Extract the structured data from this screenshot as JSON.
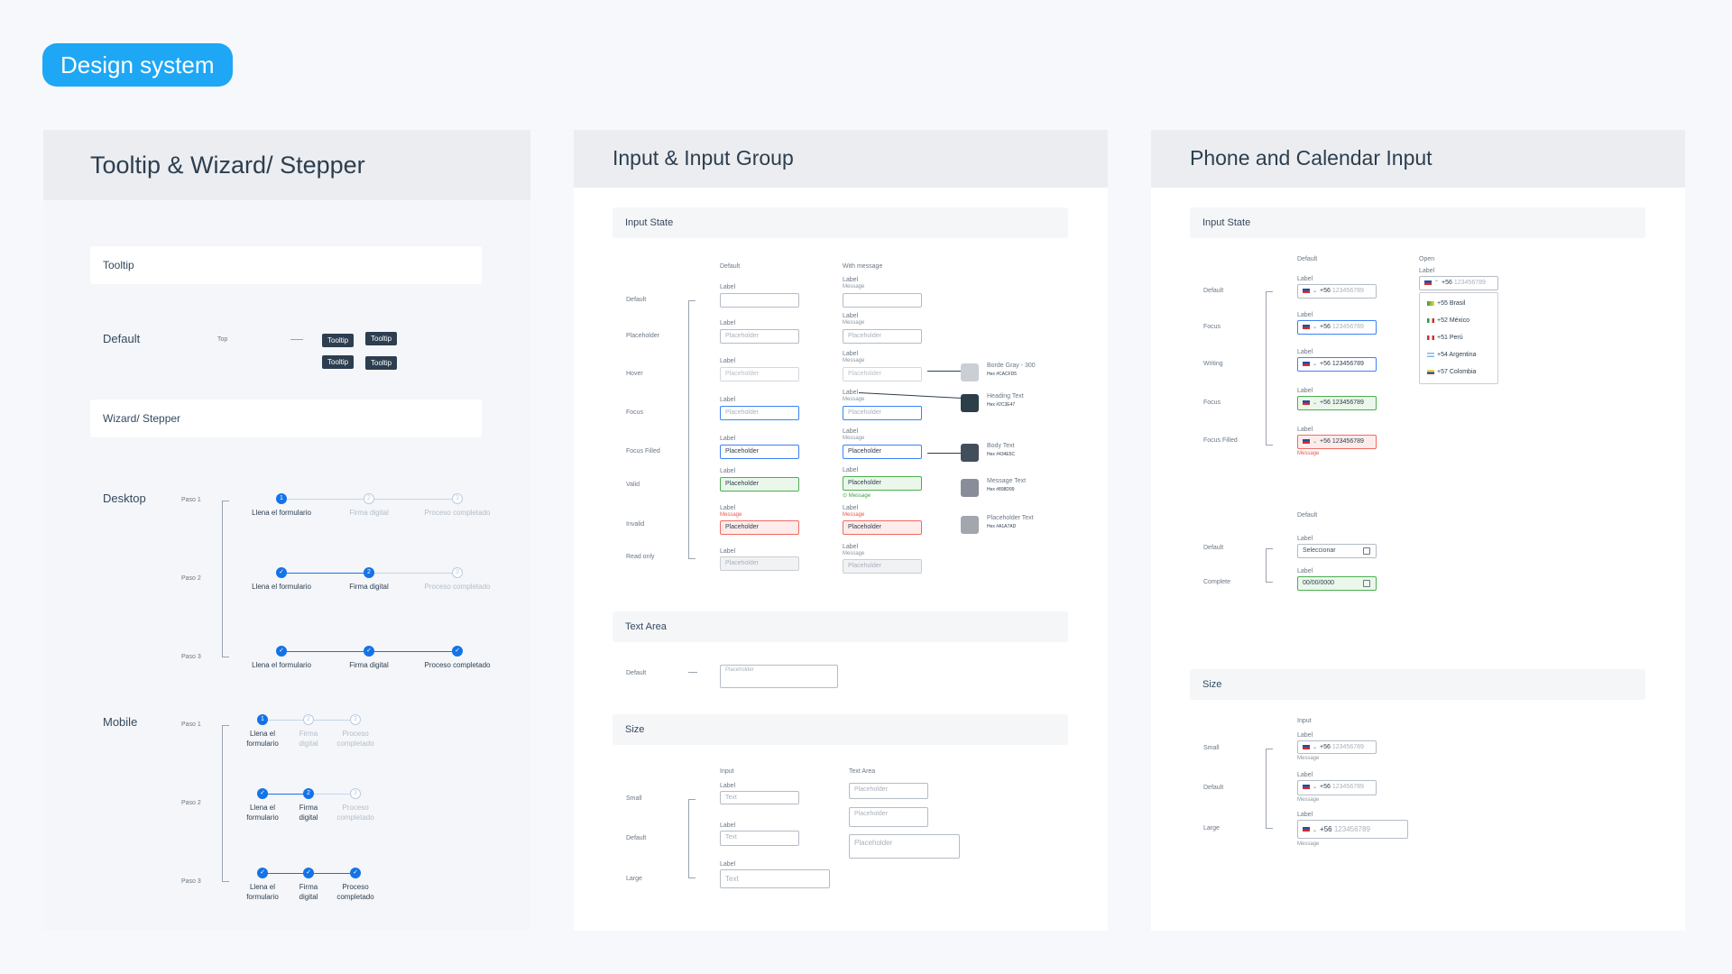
{
  "badge": "Design system",
  "p1": {
    "title": "Tooltip & Wizard/ Stepper",
    "tooltip_bar": "Tooltip",
    "default_label": "Default",
    "top_label": "Top",
    "tooltip_text": "Tooltip",
    "wizard_bar": "Wizard/ Stepper",
    "desktop": "Desktop",
    "mobile": "Mobile",
    "steps": [
      "Paso 1",
      "Paso 2",
      "Paso 3"
    ],
    "desktop_labels": [
      "Llena el formulario",
      "Firma digital",
      "Proceso completado"
    ],
    "mobile_labels": [
      [
        "Llena el",
        "formulario"
      ],
      [
        "Firma",
        "digital"
      ],
      [
        "Proceso",
        "completado"
      ]
    ],
    "nums": [
      "1",
      "2",
      "3"
    ],
    "check": "✓"
  },
  "p2": {
    "title": "Input & Input Group",
    "input_state": "Input State",
    "col_default": "Default",
    "col_message": "With message",
    "rows": [
      "Default",
      "Placeholder",
      "Hover",
      "Focus",
      "Focus Filled",
      "Valid",
      "Invalid",
      "Read only"
    ],
    "label": "Label",
    "message": "Message",
    "placeholder": "Placeholder",
    "swatches": [
      {
        "name": "Borde Gray - 300",
        "hex": "Hex #CACFD5",
        "color": "#cacfd5"
      },
      {
        "name": "Heading Text",
        "hex": "Hex #2C3E47",
        "color": "#2c3e47"
      },
      {
        "name": "Body Text",
        "hex": "Hex #434E5C",
        "color": "#434e5c"
      },
      {
        "name": "Message Text",
        "hex": "Hex #898D99",
        "color": "#898d99"
      },
      {
        "name": "Placeholder Text",
        "hex": "Hex #A1A7AD",
        "color": "#a1a7ad"
      }
    ],
    "text_area": "Text Area",
    "ta_default": "Default",
    "size": "Size",
    "size_input": "Input",
    "size_textarea": "Text Area",
    "size_rows": [
      "Small",
      "Default",
      "Large"
    ],
    "text": "Text"
  },
  "p3": {
    "title": "Phone and Calendar Input",
    "input_state": "Input State",
    "col_default": "Default",
    "col_open": "Open",
    "rows": [
      "Default",
      "Focus",
      "Writing",
      "Focus",
      "Focus Filled"
    ],
    "label": "Label",
    "message": "Message",
    "prefix": "+56",
    "number": "123456789",
    "countries": [
      "+55 Brasil",
      "+52 México",
      "+51 Perú",
      "+54 Argentina",
      "+57 Colombia"
    ],
    "cal_default": "Default",
    "cal_rows": [
      "Default",
      "Complete"
    ],
    "cal_select": "Seleccionar",
    "cal_date": "00/00/0000",
    "size": "Size",
    "size_input": "Input",
    "size_rows": [
      "Small",
      "Default",
      "Large"
    ]
  }
}
